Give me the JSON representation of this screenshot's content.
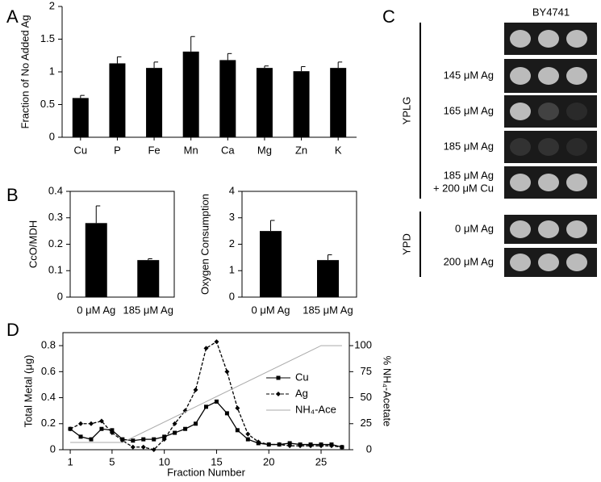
{
  "panel_labels": [
    "A",
    "B",
    "C",
    "D"
  ],
  "chart_data": [
    {
      "type": "bar",
      "ylabel": "Fraction of No Added Ag",
      "categories": [
        "Cu",
        "P",
        "Fe",
        "Mn",
        "Ca",
        "Mg",
        "Zn",
        "K"
      ],
      "values": [
        0.6,
        1.13,
        1.06,
        1.31,
        1.18,
        1.06,
        1.01,
        1.06
      ],
      "errors": [
        0.04,
        0.1,
        0.09,
        0.23,
        0.1,
        0.03,
        0.07,
        0.09
      ],
      "color": "#000000",
      "ylim": [
        0,
        2
      ],
      "yticks": [
        0,
        0.5,
        1,
        1.5,
        2
      ]
    },
    {
      "type": "bar",
      "ylabel": "CcO/MDH",
      "categories": [
        "0 μM Ag",
        "185 μM Ag"
      ],
      "values": [
        0.28,
        0.14
      ],
      "errors": [
        0.065,
        0.005
      ],
      "color": "#000000",
      "ylim": [
        0,
        0.4
      ],
      "yticks": [
        0,
        0.1,
        0.2,
        0.3,
        0.4
      ]
    },
    {
      "type": "bar",
      "ylabel": "Oxygen Consumption",
      "categories": [
        "0 μM Ag",
        "185 μM Ag"
      ],
      "values": [
        2.5,
        1.4
      ],
      "errors": [
        0.4,
        0.2
      ],
      "color": "#000000",
      "ylim": [
        0,
        4
      ],
      "yticks": [
        0,
        1,
        2,
        3,
        4
      ]
    },
    {
      "type": "line",
      "xlabel": "Fraction Number",
      "ylabel": "Total Metal (μg)",
      "y2label": "% NH₄-Acetate",
      "x": [
        1,
        2,
        3,
        4,
        5,
        6,
        7,
        8,
        9,
        10,
        11,
        12,
        13,
        14,
        15,
        16,
        17,
        18,
        19,
        20,
        21,
        22,
        23,
        24,
        25,
        26,
        27
      ],
      "series": [
        {
          "name": "Cu",
          "color": "#000000",
          "marker": "square",
          "values": [
            0.16,
            0.1,
            0.08,
            0.16,
            0.15,
            0.08,
            0.07,
            0.08,
            0.08,
            0.1,
            0.13,
            0.16,
            0.2,
            0.33,
            0.37,
            0.28,
            0.15,
            0.08,
            0.05,
            0.04,
            0.04,
            0.05,
            0.04,
            0.04,
            0.04,
            0.04,
            0.02
          ]
        },
        {
          "name": "Ag",
          "color": "#000000",
          "marker": "diamond",
          "dash": true,
          "values": [
            0.16,
            0.2,
            0.2,
            0.22,
            0.13,
            0.07,
            0.02,
            0.02,
            0.0,
            0.08,
            0.2,
            0.3,
            0.46,
            0.78,
            0.83,
            0.6,
            0.32,
            0.12,
            0.06,
            0.04,
            0.04,
            0.03,
            0.03,
            0.03,
            0.03,
            0.03,
            0.02
          ]
        },
        {
          "name": "NH₄-Ace",
          "color": "#aaaaaa",
          "axis": "y2",
          "x": [
            1,
            6,
            25,
            27
          ],
          "values": [
            7,
            7,
            100,
            100
          ]
        }
      ],
      "xlim": [
        0.3,
        27.7
      ],
      "xticks": [
        1,
        5,
        10,
        15,
        20,
        25
      ],
      "ylim": [
        0,
        0.9
      ],
      "yticks": [
        0,
        0.2,
        0.4,
        0.6,
        0.8
      ],
      "y2lim": [
        0,
        112.5
      ],
      "y2ticks": [
        0,
        25,
        50,
        75,
        100
      ],
      "legend": "right"
    }
  ],
  "panel_c": {
    "strain": "BY4741",
    "groups": [
      {
        "label": "YPLG",
        "row_labels": [
          "145 μM Ag",
          "165 μM Ag",
          "185 μM Ag",
          [
            "185 μM Ag",
            "+ 200 μM Cu"
          ]
        ]
      },
      {
        "label": "YPD",
        "row_labels": [
          "0 μM Ag",
          "200 μM Ag"
        ]
      }
    ]
  }
}
